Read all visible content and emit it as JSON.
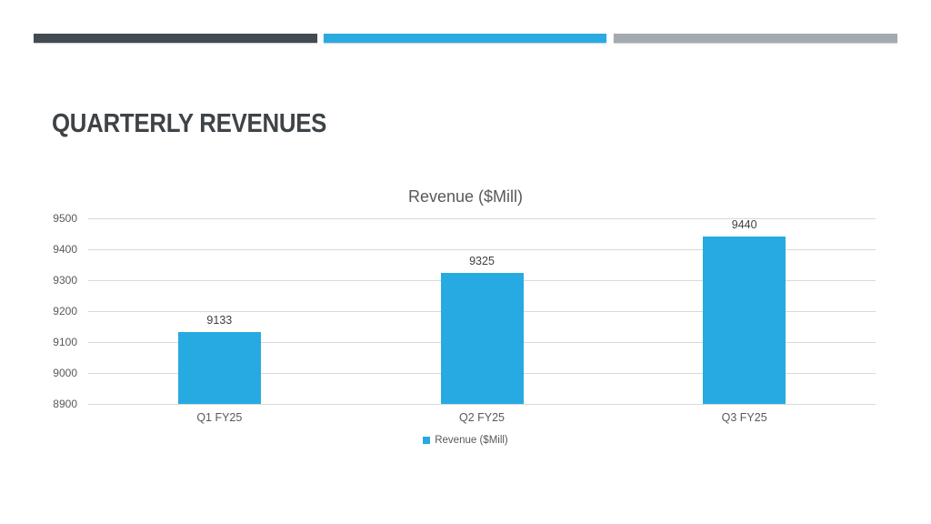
{
  "slide": {
    "title": "QUARTERLY REVENUES"
  },
  "accent_bars": {
    "dark_color": "#424B52",
    "blue_color": "#29ABE2",
    "gray_color": "#A3AAB0"
  },
  "chart_data": {
    "type": "bar",
    "title": "Revenue ($Mill)",
    "categories": [
      "Q1 FY25",
      "Q2 FY25",
      "Q3 FY25"
    ],
    "series": [
      {
        "name": "Revenue ($Mill)",
        "color": "#27AAE1",
        "values": [
          9133,
          9325,
          9440
        ]
      }
    ],
    "ylim": [
      8900,
      9500
    ],
    "yticks": [
      9500,
      9400,
      9300,
      9200,
      9100,
      9000,
      8900
    ],
    "ytick_step": 100,
    "grid": true,
    "gridline_color": "#D9D9D9",
    "data_labels_visible": true,
    "legend_position": "bottom",
    "text_color_labels": "#595959",
    "text_color_values": "#404040"
  }
}
